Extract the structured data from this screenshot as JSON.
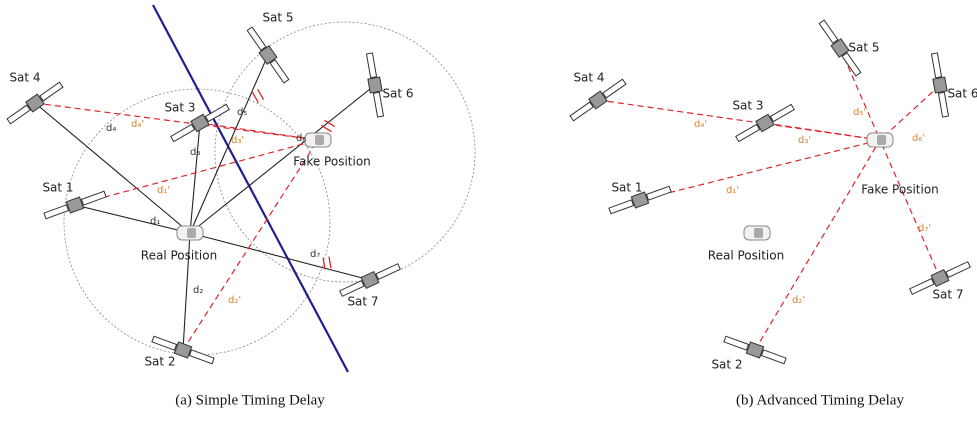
{
  "panels": [
    {
      "caption": "(a) Simple Timing Delay",
      "satellites": [
        "Sat 4",
        "Sat 3",
        "Sat 1",
        "Sat 5",
        "Sat 6",
        "Sat 7",
        "Sat 2"
      ],
      "real_position": "Real Position",
      "fake_position": "Fake Position",
      "distances": [
        "d₄",
        "d₅",
        "d₃",
        "d₆",
        "d₁",
        "d₇",
        "d₂"
      ],
      "spoofed_distances": [
        "d₄'",
        "d₃'",
        "d₁'",
        "d₂'"
      ]
    },
    {
      "caption": "(b) Advanced Timing Delay",
      "satellites": [
        "Sat 4",
        "Sat 3",
        "Sat 1",
        "Sat 5",
        "Sat 6",
        "Sat 7",
        "Sat 2"
      ],
      "real_position": "Real Position",
      "fake_position": "Fake Position",
      "spoofed_distances": [
        "d₄'",
        "d₃'",
        "d₅'",
        "d₆'",
        "d₁'",
        "d₇'",
        "d₂'"
      ]
    }
  ]
}
